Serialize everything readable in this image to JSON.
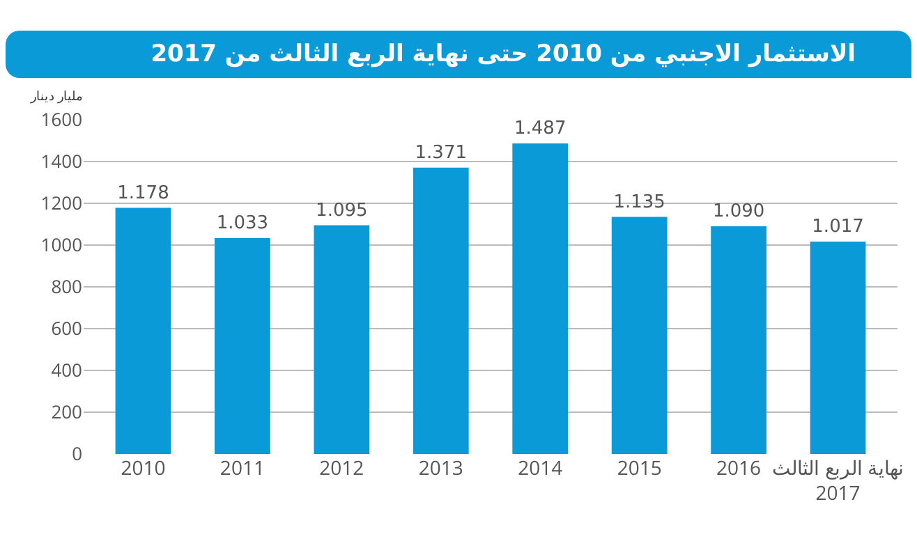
{
  "chart_data": {
    "type": "bar",
    "title": "الاستثمار الاجنبي من 2010 حتى نهاية الربع الثالث من 2017",
    "ylabel": "مليار دينار",
    "categories": [
      "2010",
      "2011",
      "2012",
      "2013",
      "2014",
      "2015",
      "2016",
      "نهاية الربع الثالث\n2017"
    ],
    "values": [
      1178,
      1033,
      1095,
      1371,
      1487,
      1135,
      1090,
      1017
    ],
    "value_labels": [
      "1.178",
      "1.033",
      "1.095",
      "1.371",
      "1.487",
      "1.135",
      "1.090",
      "1.017"
    ],
    "color": "#0a9ad8",
    "ylim": [
      0,
      1600
    ],
    "yticks": [
      0,
      200,
      400,
      600,
      800,
      1000,
      1200,
      1400,
      1600
    ],
    "grid": "y"
  }
}
